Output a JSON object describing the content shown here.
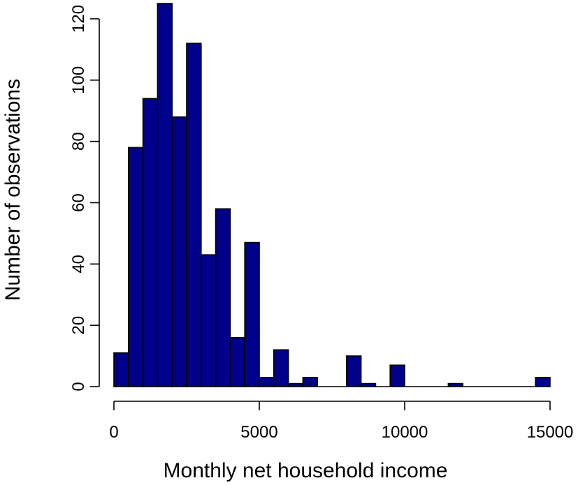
{
  "chart_data": {
    "type": "bar",
    "title": "",
    "xlabel": "Monthly net household income",
    "ylabel": "Number of observations",
    "bin_width": 500,
    "x_start": 0,
    "counts": [
      11,
      78,
      94,
      125,
      88,
      112,
      43,
      58,
      16,
      47,
      3,
      12,
      1,
      3,
      0,
      0,
      10,
      1,
      0,
      7,
      0,
      0,
      0,
      1,
      0,
      0,
      0,
      0,
      0,
      3
    ],
    "xlim": [
      0,
      15000
    ],
    "ylim": [
      0,
      125
    ],
    "x_ticks": [
      0,
      5000,
      10000,
      15000
    ],
    "x_tick_labels": [
      "0",
      "5000",
      "10000",
      "15000"
    ],
    "y_ticks": [
      0,
      20,
      40,
      60,
      80,
      100,
      120
    ],
    "y_tick_labels": [
      "0",
      "20",
      "40",
      "60",
      "80",
      "100",
      "120"
    ],
    "bar_color": "#00008B",
    "edge_color": "#000000",
    "grid": false
  }
}
